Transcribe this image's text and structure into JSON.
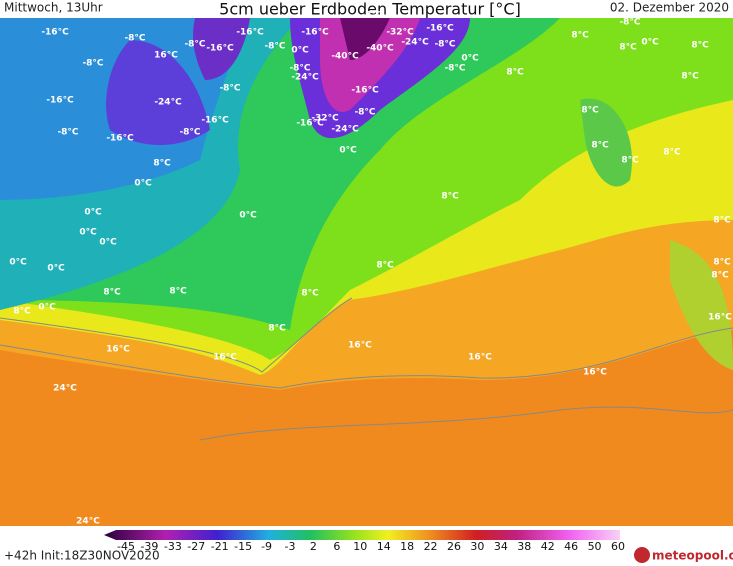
{
  "header": {
    "left": "Mittwoch, 13Uhr",
    "title": "5cm ueber Erdboden Temperatur [°C]",
    "right": "02. Dezember 2020"
  },
  "footer": {
    "run": "+42h Init:18Z30NOV2020",
    "logo": "meteopool.org"
  },
  "legend": {
    "ticks": [
      -45,
      -39,
      -33,
      -27,
      -21,
      -15,
      -9,
      -3,
      2,
      6,
      10,
      14,
      18,
      22,
      26,
      30,
      34,
      38,
      42,
      46,
      50,
      60
    ]
  },
  "labels": [
    "-16°C",
    "-8°C",
    "-8°C",
    "-16°C",
    "-16°C",
    "-8°C",
    "-32°C",
    "-16°C",
    "-8°C",
    "8°C",
    "-8°C",
    "16°C",
    "-16°C",
    "-8°C",
    "0°C",
    "-40°C",
    "-40°C",
    "-24°C",
    "-8°C",
    "0°C",
    "8°C",
    "8°C",
    "-8°C",
    "-24°C",
    "-8°C",
    "0°C",
    "8°C",
    "8°C",
    "-16°C",
    "-24°C",
    "-8°C",
    "-16°C",
    "-32°C",
    "-8°C",
    "-16°C",
    "-24°C",
    "-16°C",
    "-8°C",
    "-16°C",
    "-8°C",
    "8°C",
    "8°C",
    "8°C",
    "8°C",
    "0°C",
    "8°C",
    "0°C",
    "8°C",
    "0°C",
    "0°C",
    "8°C",
    "0°C",
    "0°C",
    "0°C",
    "0°C",
    "8°C",
    "8°C",
    "8°C",
    "8°C",
    "8°C",
    "8°C",
    "8°C",
    "0°C",
    "16°C",
    "8°C",
    "16°C",
    "16°C",
    "16°C",
    "16°C",
    "16°C",
    "24°C",
    "24°C"
  ]
}
